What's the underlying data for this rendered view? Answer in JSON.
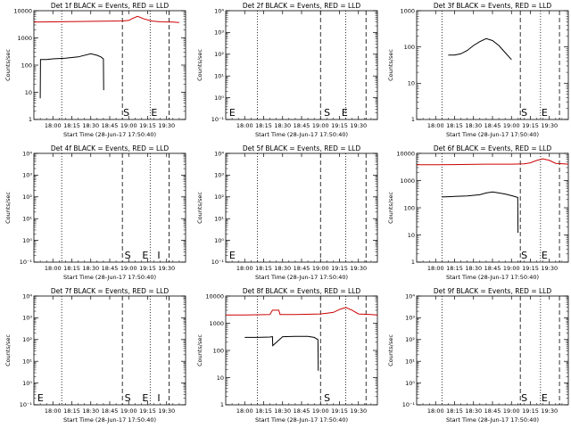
{
  "colors": {
    "events": "#000000",
    "lld": "#cc0000",
    "axes": "#000000"
  },
  "time_ticks": [
    "18:00",
    "18:15",
    "18:30",
    "18:45",
    "19:00",
    "19:15",
    "19:30"
  ],
  "xlim_min": [
    -15,
    105
  ],
  "ylabel": "Counts/sec",
  "chart_data": [
    {
      "type": "line",
      "title": "Det 1f BLACK = Events, RED = LLD",
      "xlabel": "Start Time (28-Jun-17 17:50:40)",
      "ylabel": "Counts/sec",
      "x_unit": "minutes after 18:00",
      "yscale": "log",
      "ylim": [
        1,
        10000
      ],
      "ytick_labels": [
        "1",
        "10",
        "100",
        "1000",
        "10000"
      ],
      "xticks": [
        "18:00",
        "18:15",
        "18:30",
        "18:45",
        "19:00",
        "19:15",
        "19:30"
      ],
      "dotted_lines": [
        7,
        77
      ],
      "dashed_lines": [
        55,
        92
      ],
      "labels": [
        {
          "text": "S",
          "x": 55
        },
        {
          "text": "E",
          "x": 77
        }
      ],
      "series": [
        {
          "role": "events",
          "x": [
            -10,
            -9.8,
            -5,
            0,
            10,
            20,
            30,
            35,
            38,
            40,
            40.2
          ],
          "y": [
            6,
            160,
            160,
            170,
            180,
            200,
            260,
            230,
            200,
            170,
            12
          ]
        },
        {
          "role": "lld",
          "x": [
            -15,
            0,
            20,
            40,
            55,
            60,
            63,
            67,
            72,
            78,
            85,
            95,
            100
          ],
          "y": [
            3800,
            3900,
            4000,
            4100,
            4200,
            4400,
            5200,
            6200,
            5000,
            4200,
            3900,
            3800,
            3700
          ]
        }
      ]
    },
    {
      "type": "line",
      "title": "Det 2f BLACK = Events, RED = LLD",
      "xlabel": "Start Time (28-Jun-17 17:50:40)",
      "ylabel": "Counts/sec",
      "x_unit": "minutes after 18:00",
      "yscale": "log",
      "ylim": [
        0.1,
        10000
      ],
      "ytick_labels": [
        "10⁻¹",
        "10⁰",
        "10¹",
        "10²",
        "10³",
        "10⁴"
      ],
      "xticks": [
        "18:00",
        "18:15",
        "18:30",
        "18:45",
        "19:00",
        "19:15",
        "19:30"
      ],
      "dotted_lines": [
        10,
        80
      ],
      "dashed_lines": [
        60,
        96
      ],
      "labels": [
        {
          "text": "E",
          "x": -13
        },
        {
          "text": "S",
          "x": 62
        },
        {
          "text": "E",
          "x": 76
        }
      ],
      "series": []
    },
    {
      "type": "line",
      "title": "Det 3f BLACK = Events, RED = LLD",
      "xlabel": "Start Time (28-Jun-17 17:50:40)",
      "ylabel": "Counts/sec",
      "x_unit": "minutes after 18:00",
      "yscale": "log",
      "ylim": [
        1,
        1000
      ],
      "ytick_labels": [
        "1",
        "10",
        "100",
        "1000"
      ],
      "xticks": [
        "18:00",
        "18:15",
        "18:30",
        "18:45",
        "19:00",
        "19:15",
        "19:30"
      ],
      "dotted_lines": [
        5,
        83
      ],
      "dashed_lines": [
        67,
        98
      ],
      "labels": [
        {
          "text": "S",
          "x": 67
        },
        {
          "text": "E",
          "x": 83
        }
      ],
      "series": [
        {
          "role": "events",
          "x": [
            10,
            15,
            20,
            25,
            30,
            35,
            40,
            45,
            50,
            55,
            60
          ],
          "y": [
            60,
            60,
            65,
            80,
            110,
            140,
            170,
            150,
            110,
            70,
            45
          ]
        }
      ]
    },
    {
      "type": "line",
      "title": "Det 4f BLACK = Events, RED = LLD",
      "xlabel": "Start Time (28-Jun-17 17:50:40)",
      "ylabel": "Counts/sec",
      "x_unit": "minutes after 18:00",
      "yscale": "log",
      "ylim": [
        0.1,
        10000
      ],
      "ytick_labels": [
        "10⁻¹",
        "10⁰",
        "10¹",
        "10²",
        "10³",
        "10⁴"
      ],
      "xticks": [
        "18:00",
        "18:15",
        "18:30",
        "18:45",
        "19:00",
        "19:15",
        "19:30"
      ],
      "dotted_lines": [
        7,
        77
      ],
      "dashed_lines": [
        55,
        92
      ],
      "labels": [
        {
          "text": "S",
          "x": 56
        },
        {
          "text": "E",
          "x": 70
        },
        {
          "text": "I",
          "x": 82
        }
      ],
      "series": []
    },
    {
      "type": "line",
      "title": "Det 5f BLACK = Events, RED = LLD",
      "xlabel": "Start Time (28-Jun-17 17:50:40)",
      "ylabel": "Counts/sec",
      "x_unit": "minutes after 18:00",
      "yscale": "log",
      "ylim": [
        0.1,
        10000
      ],
      "ytick_labels": [
        "10⁻¹",
        "10⁰",
        "10¹",
        "10²",
        "10³",
        "10⁴"
      ],
      "xticks": [
        "18:00",
        "18:15",
        "18:30",
        "18:45",
        "19:00",
        "19:15",
        "19:30"
      ],
      "dotted_lines": [
        10,
        80
      ],
      "dashed_lines": [
        60,
        96
      ],
      "labels": [
        {
          "text": "E",
          "x": -13
        }
      ],
      "series": []
    },
    {
      "type": "line",
      "title": "Det 6f BLACK = Events, RED = LLD",
      "xlabel": "Start Time (28-Jun-17 17:50:40)",
      "ylabel": "Counts/sec",
      "x_unit": "minutes after 18:00",
      "yscale": "log",
      "ylim": [
        1,
        10000
      ],
      "ytick_labels": [
        "1",
        "10",
        "100",
        "1000",
        "10000"
      ],
      "xticks": [
        "18:00",
        "18:15",
        "18:30",
        "18:45",
        "19:00",
        "19:15",
        "19:30"
      ],
      "dotted_lines": [
        5,
        83
      ],
      "dashed_lines": [
        67,
        98
      ],
      "labels": [
        {
          "text": "S",
          "x": 67
        },
        {
          "text": "E",
          "x": 83
        }
      ],
      "series": [
        {
          "role": "events",
          "x": [
            5,
            15,
            25,
            35,
            40,
            45,
            50,
            55,
            60,
            65,
            65.2
          ],
          "y": [
            250,
            260,
            270,
            300,
            350,
            380,
            350,
            320,
            280,
            240,
            12
          ]
        },
        {
          "role": "lld",
          "x": [
            -15,
            0,
            20,
            40,
            60,
            70,
            75,
            80,
            85,
            90,
            95,
            105
          ],
          "y": [
            3800,
            3800,
            3900,
            4000,
            4000,
            4100,
            4500,
            5500,
            6300,
            5500,
            4300,
            4000
          ]
        }
      ]
    },
    {
      "type": "line",
      "title": "Det 7f BLACK = Events, RED = LLD",
      "xlabel": "Start Time (28-Jun-17 17:50:40)",
      "ylabel": "Counts/sec",
      "x_unit": "minutes after 18:00",
      "yscale": "log",
      "ylim": [
        0.1,
        10000
      ],
      "ytick_labels": [
        "10⁻¹",
        "10⁰",
        "10¹",
        "10²",
        "10³",
        "10⁴"
      ],
      "xticks": [
        "18:00",
        "18:15",
        "18:30",
        "18:45",
        "19:00",
        "19:15",
        "19:30"
      ],
      "dotted_lines": [
        7,
        77
      ],
      "dashed_lines": [
        55,
        92
      ],
      "labels": [
        {
          "text": "E",
          "x": -13
        },
        {
          "text": "S",
          "x": 56
        },
        {
          "text": "E",
          "x": 70
        },
        {
          "text": "I",
          "x": 82
        }
      ],
      "series": []
    },
    {
      "type": "line",
      "title": "Det 8f BLACK = Events, RED = LLD",
      "xlabel": "Start Time (28-Jun-17 17:50:40)",
      "ylabel": "Counts/sec",
      "x_unit": "minutes after 18:00",
      "yscale": "log",
      "ylim": [
        1,
        10000
      ],
      "ytick_labels": [
        "1",
        "10",
        "100",
        "1000",
        "10000"
      ],
      "xticks": [
        "18:00",
        "18:15",
        "18:30",
        "18:45",
        "19:00",
        "19:15",
        "19:30"
      ],
      "dotted_lines": [
        10,
        80
      ],
      "dashed_lines": [
        60,
        96
      ],
      "labels": [
        {
          "text": "S",
          "x": 62
        }
      ],
      "series": [
        {
          "role": "events",
          "x": [
            0,
            10,
            20,
            22,
            22.2,
            30,
            40,
            50,
            55,
            58,
            58.2
          ],
          "y": [
            300,
            300,
            310,
            320,
            150,
            320,
            330,
            330,
            300,
            250,
            18
          ]
        },
        {
          "role": "lld",
          "x": [
            -15,
            0,
            20,
            22,
            25,
            27,
            28,
            40,
            60,
            70,
            75,
            80,
            85,
            90,
            100,
            105
          ],
          "y": [
            2000,
            2000,
            2100,
            3000,
            3000,
            3000,
            2100,
            2100,
            2200,
            2500,
            3200,
            3800,
            3000,
            2200,
            2100,
            2000
          ]
        }
      ]
    },
    {
      "type": "line",
      "title": "Det 9f BLACK = Events, RED = LLD",
      "xlabel": "Start Time (28-Jun-17 17:50:40)",
      "ylabel": "Counts/sec",
      "x_unit": "minutes after 18:00",
      "yscale": "log",
      "ylim": [
        0.1,
        10000
      ],
      "ytick_labels": [
        "10⁻¹",
        "10⁰",
        "10¹",
        "10²",
        "10³",
        "10⁴"
      ],
      "xticks": [
        "18:00",
        "18:15",
        "18:30",
        "18:45",
        "19:00",
        "19:15",
        "19:30"
      ],
      "dotted_lines": [
        5,
        83
      ],
      "dashed_lines": [
        67,
        98
      ],
      "labels": [
        {
          "text": "S",
          "x": 67
        },
        {
          "text": "E",
          "x": 83
        }
      ],
      "series": []
    }
  ]
}
